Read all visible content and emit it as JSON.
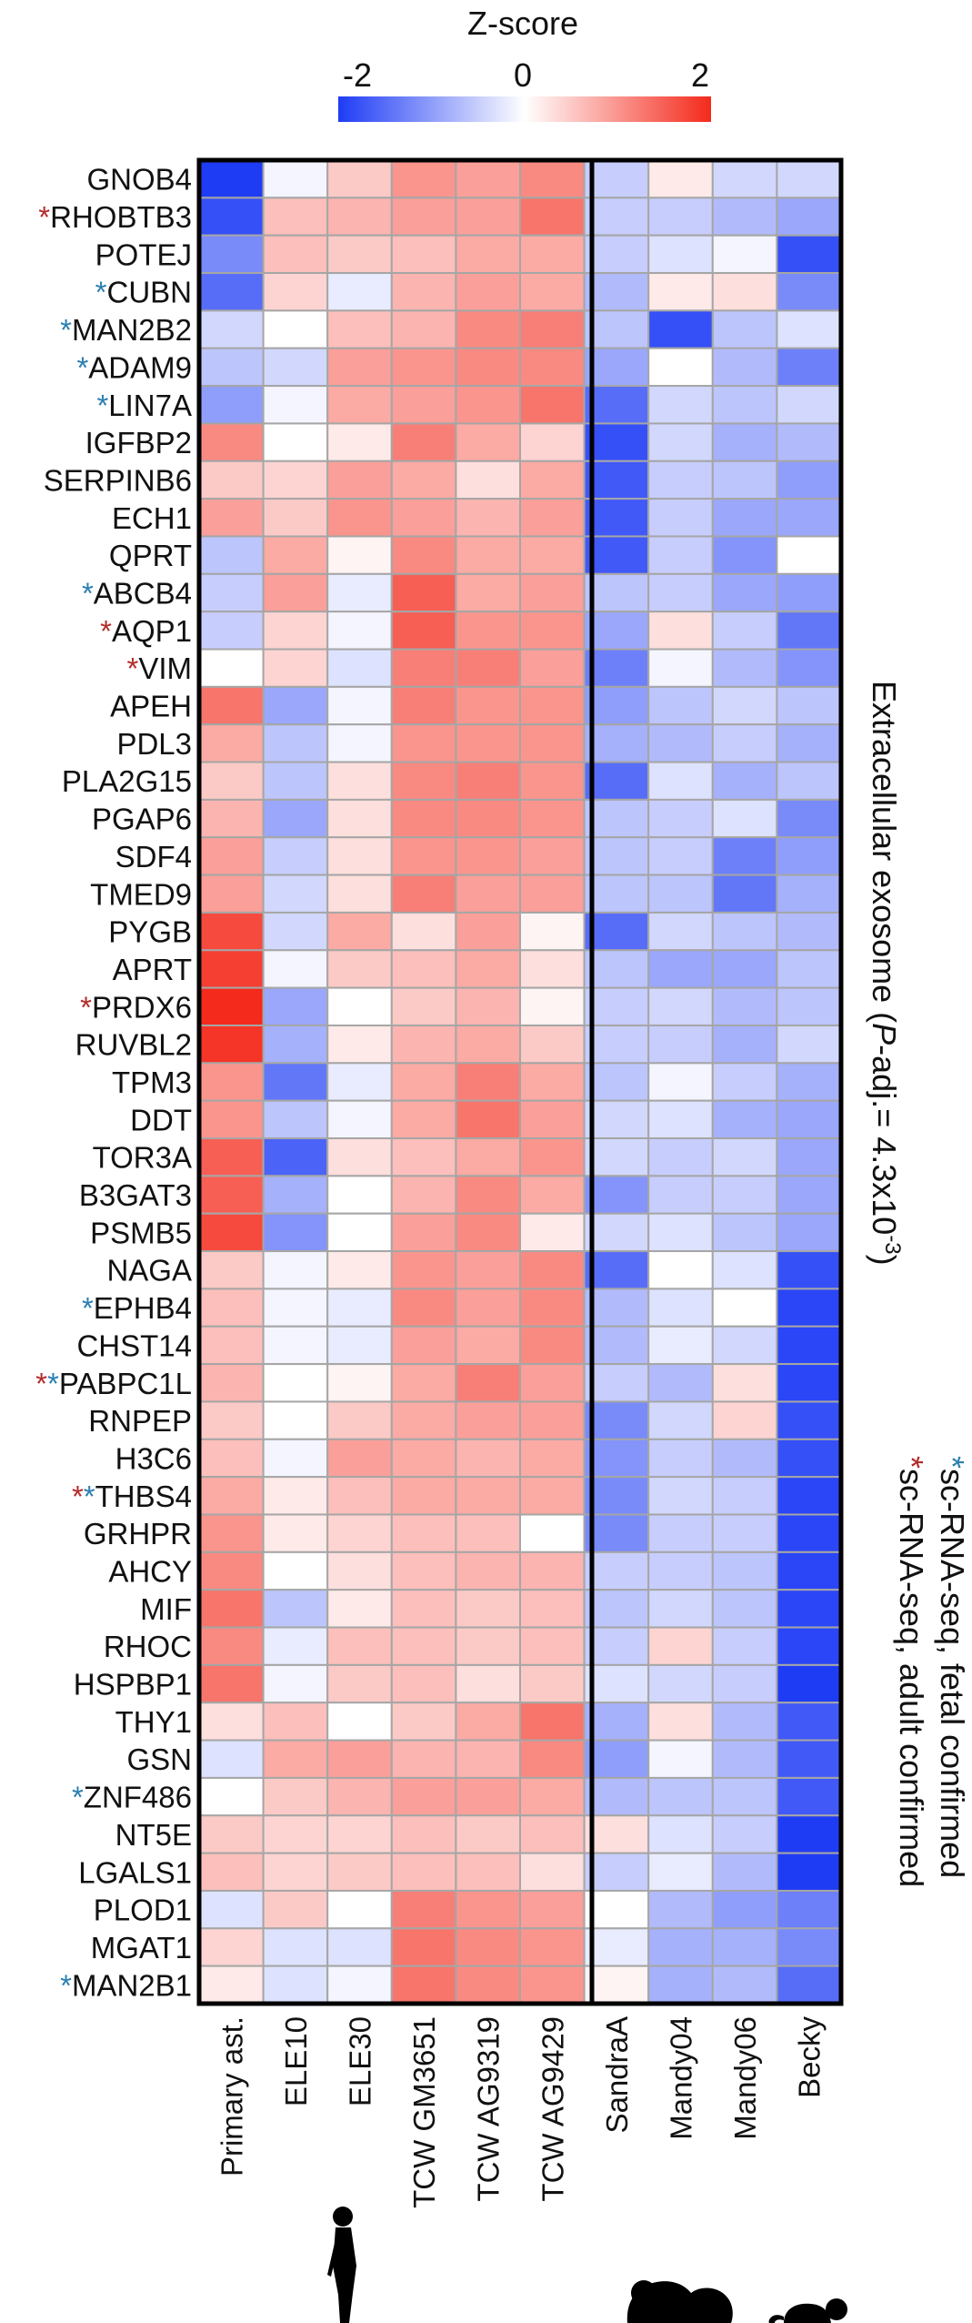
{
  "colorbar": {
    "title": "Z-score",
    "ticks": [
      "-2",
      "0",
      "2"
    ],
    "colors": {
      "low": "#1f3cf5",
      "mid": "#ffffff",
      "high": "#f42a1c"
    }
  },
  "markers": {
    "fetal_color": "#2a7fb0",
    "adult_color": "#b32a2a",
    "symbol": "*"
  },
  "annotation": {
    "category": "Extracellular exosome (",
    "italic": "P",
    "rest": "-adj.= 4.3x10",
    "sup": "-3",
    "close": ")"
  },
  "legend": {
    "fetal": "sc-RNA-seq, fetal confirmed",
    "adult": "sc-RNA-seq, adult confirmed"
  },
  "silhouettes": [
    "human-silhouette",
    "chimpanzee-silhouette",
    "small-primate-silhouette"
  ],
  "chart_data": {
    "type": "heatmap",
    "title": "",
    "columns": [
      "Primary ast.",
      "ELE10",
      "ELE30",
      "TCW GM3651",
      "TCW AG9319",
      "TCW AG9429",
      "SandraA",
      "Mandy04",
      "Mandy06",
      "Becky"
    ],
    "divider_after_column": 5,
    "value_range": [
      -2,
      2
    ],
    "rows": [
      {
        "gene": "GNOB4",
        "marks": "",
        "values": [
          -2.0,
          -0.1,
          0.5,
          1.0,
          0.9,
          1.1,
          -0.5,
          0.2,
          -0.4,
          -0.4
        ]
      },
      {
        "gene": "RHOBTB3",
        "marks": "a",
        "values": [
          -1.8,
          0.6,
          0.7,
          0.9,
          0.9,
          1.3,
          -0.5,
          -0.5,
          -0.7,
          -0.9
        ]
      },
      {
        "gene": "POTEJ",
        "marks": "",
        "values": [
          -1.2,
          0.6,
          0.5,
          0.6,
          0.8,
          0.8,
          -0.5,
          -0.3,
          -0.1,
          -1.8
        ]
      },
      {
        "gene": "CUBN",
        "marks": "f",
        "values": [
          -1.5,
          0.4,
          -0.2,
          0.7,
          0.9,
          0.8,
          -0.7,
          0.2,
          0.3,
          -1.2
        ]
      },
      {
        "gene": "MAN2B2",
        "marks": "f",
        "values": [
          -0.4,
          0.0,
          0.6,
          0.7,
          1.1,
          1.2,
          -0.6,
          -1.8,
          -0.6,
          -0.3
        ]
      },
      {
        "gene": "ADAM9",
        "marks": "f",
        "values": [
          -0.6,
          -0.4,
          0.9,
          1.0,
          1.1,
          1.1,
          -0.9,
          0.0,
          -0.7,
          -1.3
        ]
      },
      {
        "gene": "LIN7A",
        "marks": "f",
        "values": [
          -1.0,
          -0.1,
          0.8,
          0.9,
          1.0,
          1.3,
          -1.5,
          -0.4,
          -0.6,
          -0.4
        ]
      },
      {
        "gene": "IGFBP2",
        "marks": "",
        "values": [
          1.1,
          0.0,
          0.2,
          1.2,
          0.8,
          0.4,
          -1.8,
          -0.4,
          -0.8,
          -0.7
        ]
      },
      {
        "gene": "SERPINB6",
        "marks": "",
        "values": [
          0.5,
          0.4,
          0.9,
          0.8,
          0.3,
          0.8,
          -1.7,
          -0.5,
          -0.6,
          -1.0
        ]
      },
      {
        "gene": "ECH1",
        "marks": "",
        "values": [
          0.9,
          0.5,
          1.0,
          0.9,
          0.7,
          0.9,
          -1.7,
          -0.5,
          -0.9,
          -0.9
        ]
      },
      {
        "gene": "QPRT",
        "marks": "",
        "values": [
          -0.6,
          0.8,
          0.1,
          1.1,
          0.8,
          0.8,
          -1.7,
          -0.5,
          -1.1,
          0.0
        ]
      },
      {
        "gene": "ABCB4",
        "marks": "f",
        "values": [
          -0.5,
          0.9,
          -0.2,
          1.5,
          0.8,
          0.9,
          -0.6,
          -0.5,
          -0.9,
          -1.0
        ]
      },
      {
        "gene": "AQP1",
        "marks": "a",
        "values": [
          -0.5,
          0.4,
          -0.1,
          1.5,
          1.0,
          1.0,
          -0.9,
          0.3,
          -0.5,
          -1.4
        ]
      },
      {
        "gene": "VIM",
        "marks": "a",
        "values": [
          0.0,
          0.4,
          -0.3,
          1.2,
          1.2,
          0.9,
          -1.3,
          -0.1,
          -0.7,
          -1.1
        ]
      },
      {
        "gene": "APEH",
        "marks": "",
        "values": [
          1.3,
          -0.9,
          -0.1,
          1.2,
          1.0,
          1.0,
          -1.0,
          -0.6,
          -0.4,
          -0.6
        ]
      },
      {
        "gene": "PDL3",
        "marks": "",
        "values": [
          0.8,
          -0.6,
          -0.1,
          1.0,
          1.0,
          1.0,
          -0.8,
          -0.7,
          -0.5,
          -0.8
        ]
      },
      {
        "gene": "PLA2G15",
        "marks": "",
        "values": [
          0.5,
          -0.6,
          0.3,
          1.1,
          1.2,
          1.0,
          -1.5,
          -0.3,
          -0.8,
          -0.6
        ]
      },
      {
        "gene": "PGAP6",
        "marks": "",
        "values": [
          0.7,
          -0.9,
          0.3,
          1.1,
          1.1,
          1.0,
          -0.6,
          -0.5,
          -0.3,
          -1.2
        ]
      },
      {
        "gene": "SDF4",
        "marks": "",
        "values": [
          0.9,
          -0.5,
          0.3,
          1.0,
          1.0,
          0.9,
          -0.6,
          -0.5,
          -1.3,
          -1.0
        ]
      },
      {
        "gene": "TMED9",
        "marks": "",
        "values": [
          0.9,
          -0.4,
          0.3,
          1.2,
          0.9,
          0.9,
          -0.6,
          -0.6,
          -1.4,
          -0.8
        ]
      },
      {
        "gene": "PYGB",
        "marks": "",
        "values": [
          1.7,
          -0.4,
          0.8,
          0.3,
          0.9,
          0.1,
          -1.5,
          -0.4,
          -0.6,
          -0.7
        ]
      },
      {
        "gene": "APRT",
        "marks": "",
        "values": [
          1.8,
          -0.1,
          0.5,
          0.6,
          0.8,
          0.3,
          -0.6,
          -0.9,
          -0.9,
          -0.6
        ]
      },
      {
        "gene": "PRDX6",
        "marks": "a",
        "values": [
          2.0,
          -0.9,
          0.0,
          0.5,
          0.7,
          0.1,
          -0.5,
          -0.4,
          -0.7,
          -0.6
        ]
      },
      {
        "gene": "RUVBL2",
        "marks": "",
        "values": [
          1.9,
          -0.8,
          0.2,
          0.7,
          0.8,
          0.5,
          -0.5,
          -0.5,
          -0.8,
          -0.4
        ]
      },
      {
        "gene": "TPM3",
        "marks": "",
        "values": [
          1.0,
          -1.4,
          -0.2,
          0.8,
          1.2,
          0.8,
          -0.6,
          -0.1,
          -0.5,
          -0.8
        ]
      },
      {
        "gene": "DDT",
        "marks": "",
        "values": [
          1.0,
          -0.6,
          -0.1,
          0.8,
          1.3,
          0.9,
          -0.4,
          -0.3,
          -0.8,
          -0.9
        ]
      },
      {
        "gene": "TOR3A",
        "marks": "",
        "values": [
          1.5,
          -1.6,
          0.3,
          0.6,
          0.8,
          1.0,
          -0.4,
          -0.5,
          -0.4,
          -0.9
        ]
      },
      {
        "gene": "B3GAT3",
        "marks": "",
        "values": [
          1.5,
          -0.8,
          0.0,
          0.7,
          1.1,
          0.8,
          -1.1,
          -0.5,
          -0.5,
          -0.9
        ]
      },
      {
        "gene": "PSMB5",
        "marks": "",
        "values": [
          1.7,
          -1.1,
          0.0,
          0.9,
          1.1,
          0.2,
          -0.4,
          -0.3,
          -0.6,
          -0.9
        ]
      },
      {
        "gene": "NAGA",
        "marks": "",
        "values": [
          0.5,
          -0.1,
          0.2,
          1.0,
          0.9,
          1.1,
          -1.5,
          0.0,
          -0.3,
          -1.8
        ]
      },
      {
        "gene": "EPHB4",
        "marks": "f",
        "values": [
          0.6,
          -0.1,
          -0.2,
          1.1,
          0.9,
          1.1,
          -0.7,
          -0.3,
          0.0,
          -1.9
        ]
      },
      {
        "gene": "CHST14",
        "marks": "",
        "values": [
          0.6,
          -0.1,
          -0.2,
          0.9,
          0.8,
          1.1,
          -0.7,
          -0.2,
          -0.4,
          -1.9
        ]
      },
      {
        "gene": "PABPC1L",
        "marks": "af",
        "values": [
          0.7,
          0.0,
          0.1,
          0.8,
          1.2,
          0.9,
          -0.5,
          -0.7,
          0.3,
          -1.9
        ]
      },
      {
        "gene": "RNPEP",
        "marks": "",
        "values": [
          0.5,
          0.0,
          0.5,
          0.8,
          0.9,
          0.9,
          -1.2,
          -0.4,
          0.4,
          -1.8
        ]
      },
      {
        "gene": "H3C6",
        "marks": "",
        "values": [
          0.6,
          -0.1,
          0.9,
          0.8,
          0.7,
          0.8,
          -1.1,
          -0.5,
          -0.7,
          -1.8
        ]
      },
      {
        "gene": "THBS4",
        "marks": "af",
        "values": [
          0.8,
          0.2,
          0.6,
          0.8,
          0.8,
          0.8,
          -1.2,
          -0.4,
          -0.5,
          -1.9
        ]
      },
      {
        "gene": "GRHPR",
        "marks": "",
        "values": [
          1.0,
          0.2,
          0.4,
          0.6,
          0.6,
          0.0,
          -1.2,
          -0.5,
          -0.5,
          -1.9
        ]
      },
      {
        "gene": "AHCY",
        "marks": "",
        "values": [
          1.1,
          0.0,
          0.3,
          0.6,
          0.7,
          0.7,
          -0.5,
          -0.5,
          -0.6,
          -1.9
        ]
      },
      {
        "gene": "MIF",
        "marks": "",
        "values": [
          1.3,
          -0.6,
          0.2,
          0.6,
          0.5,
          0.6,
          -0.6,
          -0.4,
          -0.6,
          -1.9
        ]
      },
      {
        "gene": "RHOC",
        "marks": "",
        "values": [
          1.1,
          -0.2,
          0.6,
          0.6,
          0.5,
          0.6,
          -0.5,
          0.4,
          -0.5,
          -1.9
        ]
      },
      {
        "gene": "HSPBP1",
        "marks": "",
        "values": [
          1.3,
          -0.1,
          0.5,
          0.6,
          0.3,
          0.5,
          -0.3,
          -0.4,
          -0.5,
          -2.0
        ]
      },
      {
        "gene": "THY1",
        "marks": "",
        "values": [
          0.3,
          0.6,
          0.0,
          0.5,
          0.8,
          1.3,
          -0.8,
          0.3,
          -0.7,
          -1.7
        ]
      },
      {
        "gene": "GSN",
        "marks": "",
        "values": [
          -0.3,
          0.8,
          0.9,
          0.7,
          0.7,
          1.1,
          -1.0,
          -0.1,
          -0.7,
          -1.7
        ]
      },
      {
        "gene": "ZNF486",
        "marks": "f",
        "values": [
          0.0,
          0.5,
          0.7,
          0.9,
          0.9,
          0.8,
          -0.7,
          -0.6,
          -0.6,
          -1.7
        ]
      },
      {
        "gene": "NT5E",
        "marks": "",
        "values": [
          0.5,
          0.4,
          0.4,
          0.6,
          0.5,
          0.6,
          0.3,
          -0.3,
          -0.5,
          -2.0
        ]
      },
      {
        "gene": "LGALS1",
        "marks": "",
        "values": [
          0.6,
          0.4,
          0.5,
          0.6,
          0.6,
          0.3,
          -0.5,
          -0.2,
          -0.7,
          -2.0
        ]
      },
      {
        "gene": "PLOD1",
        "marks": "",
        "values": [
          -0.3,
          0.5,
          0.0,
          1.2,
          1.0,
          0.9,
          0.0,
          -0.7,
          -1.0,
          -1.3
        ]
      },
      {
        "gene": "MGAT1",
        "marks": "",
        "values": [
          0.4,
          -0.3,
          -0.3,
          1.3,
          1.1,
          1.0,
          -0.2,
          -0.8,
          -0.8,
          -1.2
        ]
      },
      {
        "gene": "MAN2B1",
        "marks": "f",
        "values": [
          0.2,
          -0.3,
          -0.1,
          1.3,
          1.1,
          1.0,
          0.1,
          -0.8,
          -0.7,
          -1.5
        ]
      }
    ]
  }
}
